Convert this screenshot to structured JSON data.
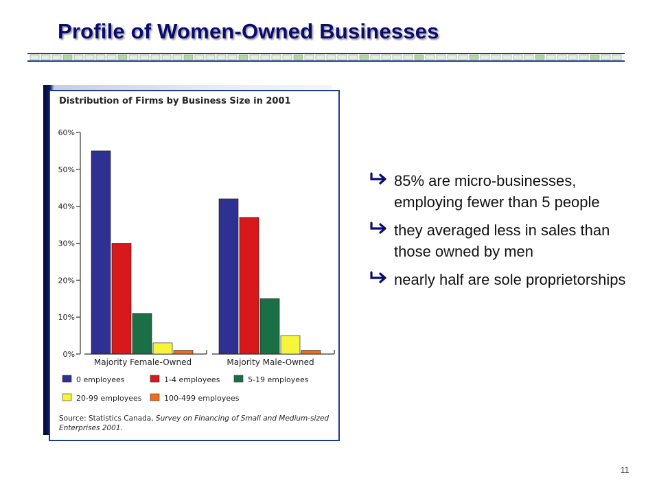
{
  "slide": {
    "title": "Profile of Women-Owned Businesses",
    "page_number": "11"
  },
  "bullets": [
    "85% are micro-businesses, employing fewer than 5 people",
    "they averaged less in sales than those owned by men",
    "nearly half are sole proprietorships"
  ],
  "chart_data": {
    "type": "bar",
    "title": "Distribution of Firms by Business Size in 2001",
    "categories": [
      "Majority Female-Owned",
      "Majority Male-Owned"
    ],
    "series": [
      {
        "name": "0 employees",
        "color": "#2e3192",
        "values": [
          55,
          42
        ]
      },
      {
        "name": "1-4 employees",
        "color": "#d7191c",
        "values": [
          30,
          37
        ]
      },
      {
        "name": "5-19 employees",
        "color": "#1a7044",
        "values": [
          11,
          15
        ]
      },
      {
        "name": "20-99 employees",
        "color": "#f5f53a",
        "values": [
          3,
          5
        ]
      },
      {
        "name": "100-499 employees",
        "color": "#ef6c1f",
        "values": [
          1,
          1
        ]
      }
    ],
    "yticks": [
      "0%",
      "10%",
      "20%",
      "30%",
      "40%",
      "50%",
      "60%"
    ],
    "ylim": [
      0,
      60
    ],
    "y_unit": "%",
    "grid": false,
    "legend_position": "bottom",
    "source_prefix": "Source: Statistics Canada, ",
    "source_title": "Survey on Financing of Small and Medium-sized Enterprises 2001",
    "source_suffix": "."
  }
}
